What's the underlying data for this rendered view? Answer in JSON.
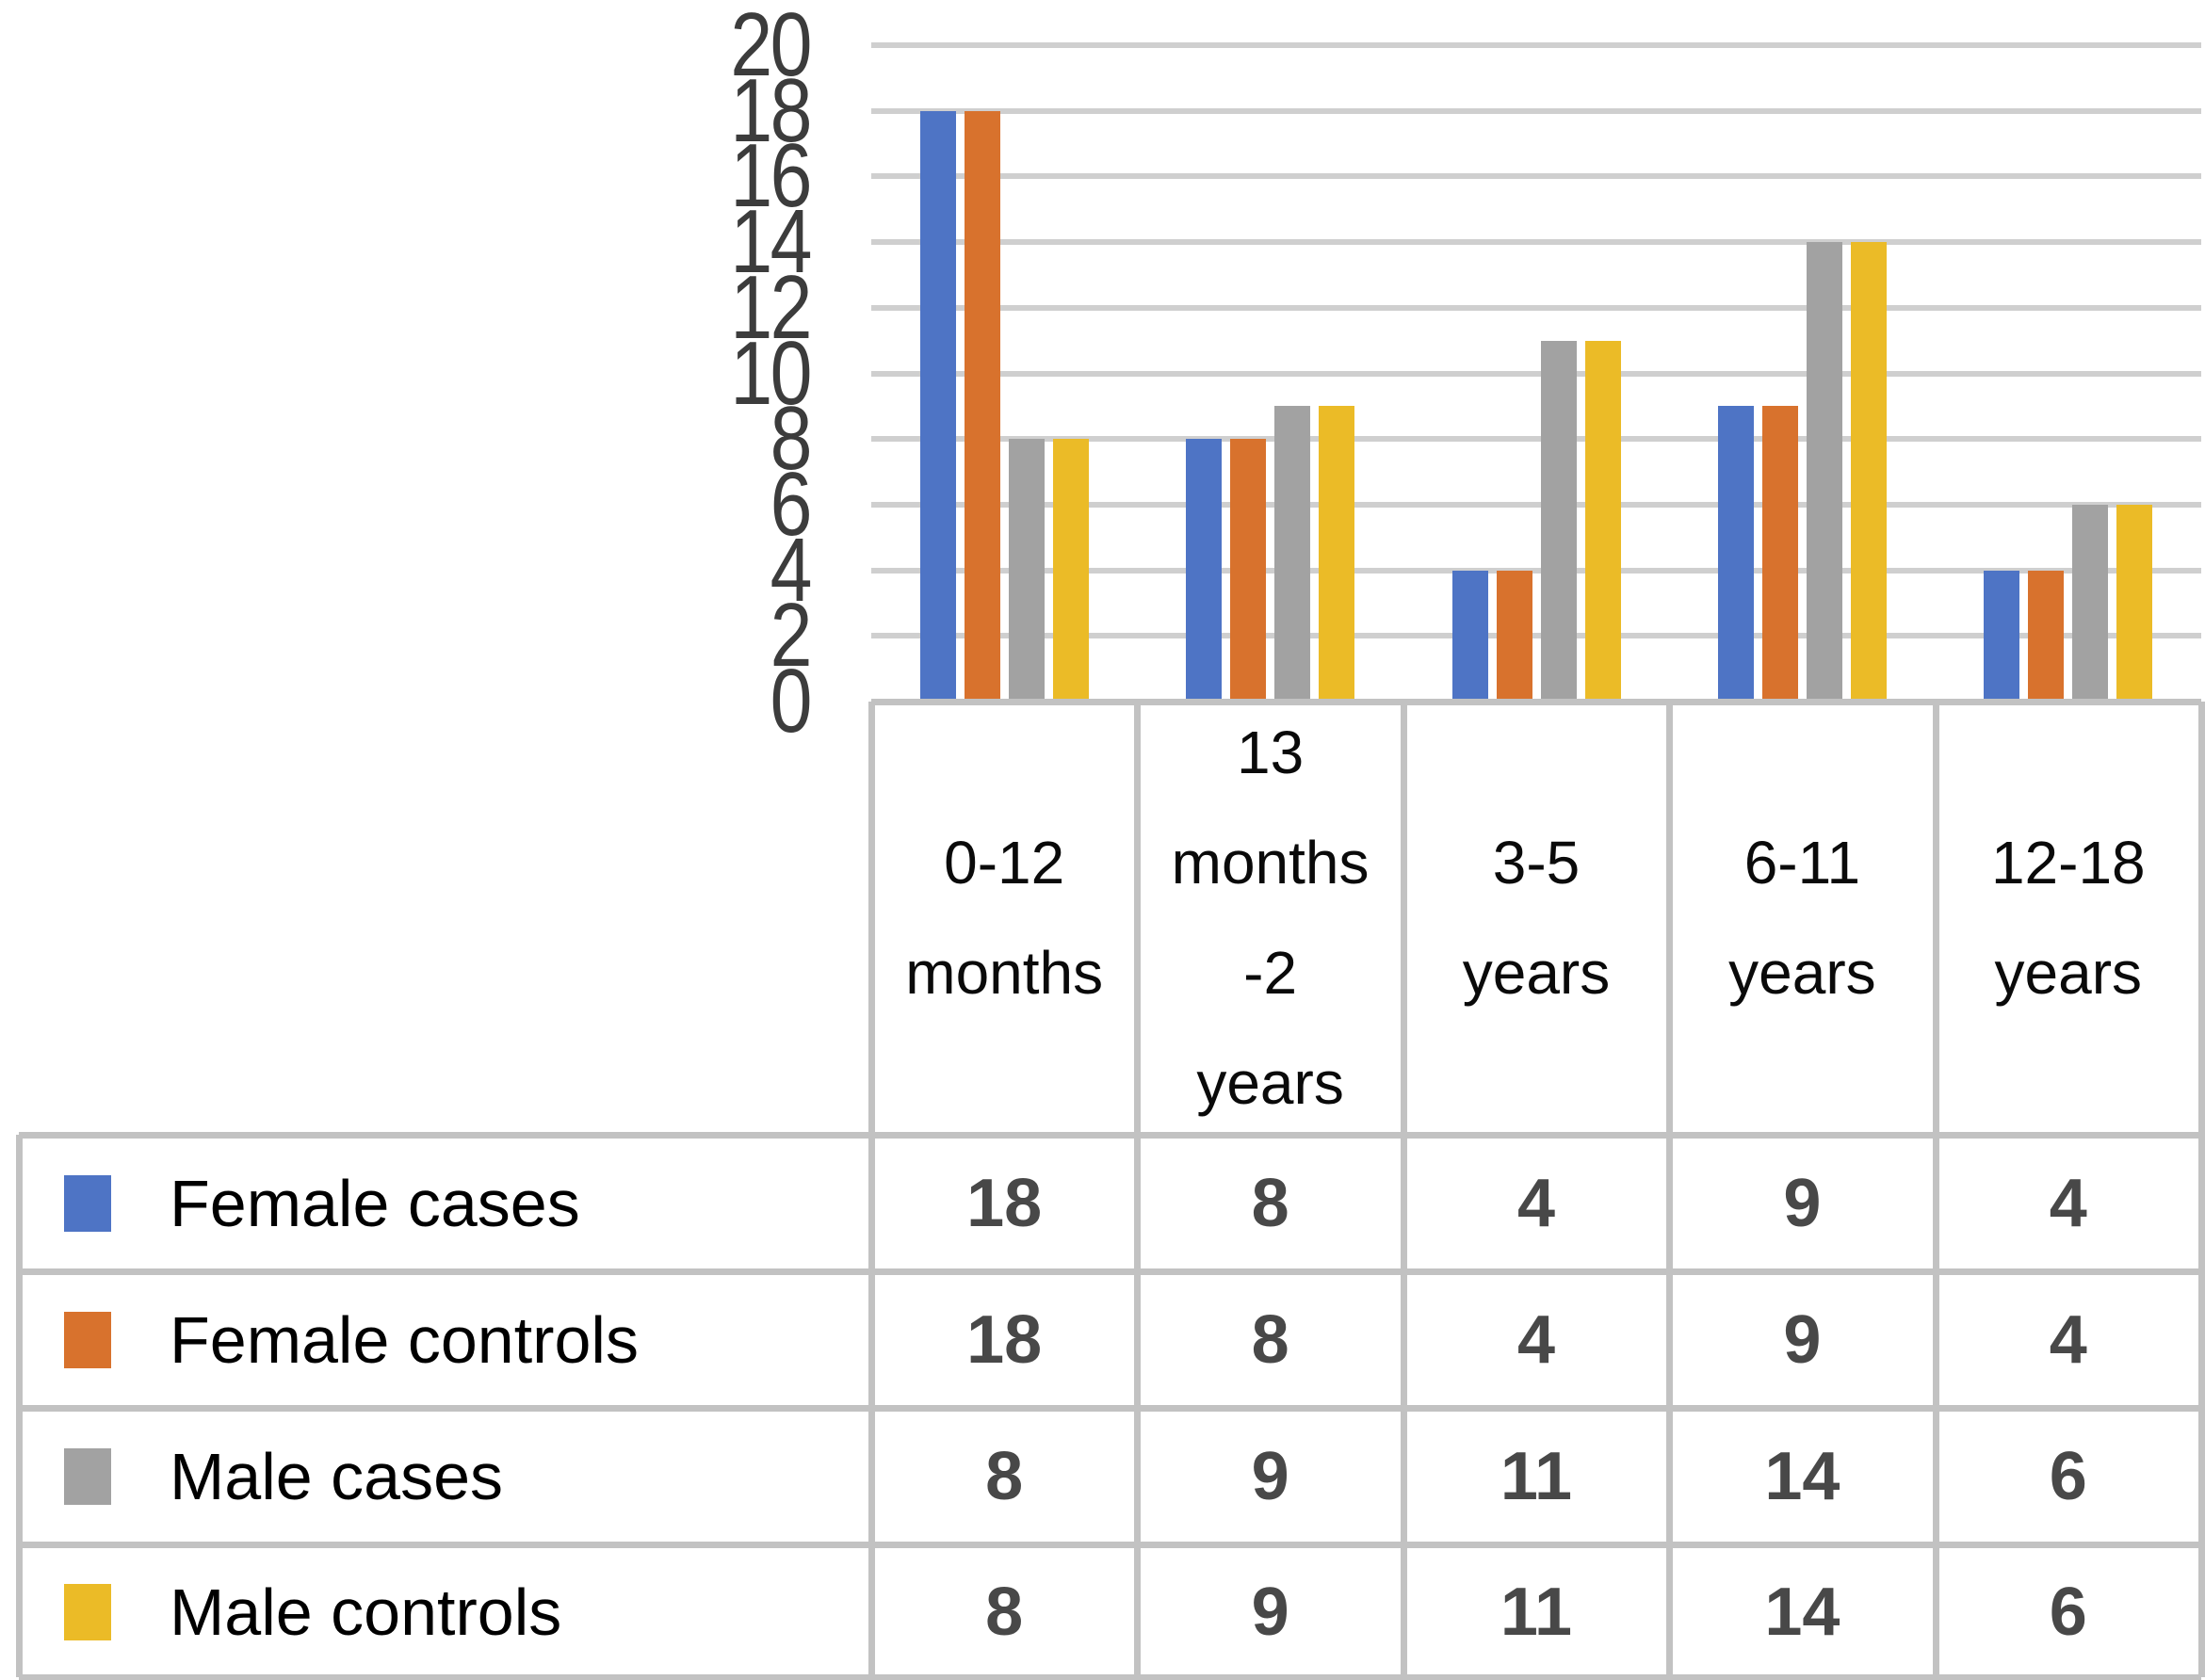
{
  "chart_data": {
    "type": "bar",
    "title": "",
    "xlabel": "",
    "ylabel": "",
    "categories": [
      "0-12 months",
      "13 months -2 years",
      "3-5 years",
      "6-11 years",
      "12-18 years"
    ],
    "category_label_lines": [
      [
        "0-12",
        "months"
      ],
      [
        "13",
        "months",
        "-2",
        "years"
      ],
      [
        "3-5",
        "years"
      ],
      [
        "6-11",
        "years"
      ],
      [
        "12-18",
        "years"
      ]
    ],
    "series": [
      {
        "name": "Female cases",
        "color": "#4e74c5",
        "values": [
          18,
          8,
          4,
          9,
          4
        ]
      },
      {
        "name": "Female controls",
        "color": "#d8722d",
        "values": [
          18,
          8,
          4,
          9,
          4
        ]
      },
      {
        "name": "Male cases",
        "color": "#a2a2a2",
        "values": [
          8,
          9,
          11,
          14,
          6
        ]
      },
      {
        "name": "Male controls",
        "color": "#ebbb27",
        "values": [
          8,
          9,
          11,
          14,
          6
        ]
      }
    ],
    "ylim": [
      0,
      20
    ],
    "yticks": [
      0,
      2,
      4,
      6,
      8,
      10,
      12,
      14,
      16,
      18,
      20
    ],
    "grid": "horizontal-on",
    "legend_position": "data-table-left-column",
    "colors": {
      "gridline": "#cfcfcf",
      "table_border": "#c2c2c2",
      "axis_tick_label": "#3c3c3c",
      "table_value_text": "#484848",
      "legend_label_text": "#000000",
      "background": "#ffffff"
    }
  }
}
